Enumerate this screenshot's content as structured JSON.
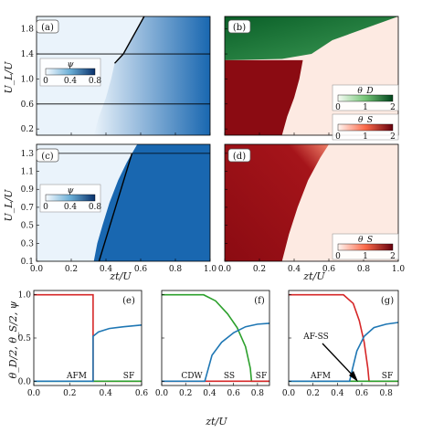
{
  "chart_data": [
    {
      "type": "heatmap",
      "panel": "(a)",
      "colormap": "Blues",
      "colorbar_label": "ψ",
      "colorbar_ticks": [
        "0",
        "0.4",
        "0.8"
      ],
      "xlim": [
        0,
        1.0
      ],
      "ylim": [
        0.1,
        2.0
      ],
      "yticks": [
        "0.2",
        "0.6",
        "1.0",
        "1.4",
        "1.8"
      ],
      "ylabel": "U_L/U",
      "xticks": [],
      "xlabel": "",
      "boundary": [
        {
          "x": 0.33,
          "y": 0.1
        },
        {
          "x": 0.36,
          "y": 0.4
        },
        {
          "x": 0.4,
          "y": 0.7
        },
        {
          "x": 0.43,
          "y": 1.0
        },
        {
          "x": 0.45,
          "y": 1.25
        },
        {
          "x": 0.5,
          "y": 1.4
        },
        {
          "x": 0.62,
          "y": 2.0
        }
      ],
      "hlines": [
        0.6,
        1.4
      ]
    },
    {
      "type": "heatmap",
      "panel": "(b)",
      "colormap": "Greens / Reds",
      "legend": [
        {
          "label": "θ_D",
          "ticks": [
            "0",
            "1",
            "2"
          ]
        },
        {
          "label": "θ_S",
          "ticks": [
            "0",
            "1",
            "2"
          ]
        }
      ],
      "xlim": [
        0,
        1.0
      ],
      "ylim": [
        0.1,
        2.0
      ],
      "green_region_boundary": [
        {
          "x": 0.0,
          "y": 1.3
        },
        {
          "x": 0.33,
          "y": 1.32
        },
        {
          "x": 0.5,
          "y": 1.4
        },
        {
          "x": 0.62,
          "y": 1.62
        },
        {
          "x": 1.0,
          "y": 2.0
        }
      ],
      "red_region_boundary": [
        {
          "x": 0.33,
          "y": 0.1
        },
        {
          "x": 0.36,
          "y": 0.4
        },
        {
          "x": 0.4,
          "y": 0.7
        },
        {
          "x": 0.43,
          "y": 1.0
        },
        {
          "x": 0.45,
          "y": 1.3
        }
      ]
    },
    {
      "type": "heatmap",
      "panel": "(c)",
      "colormap": "Blues",
      "colorbar_label": "ψ",
      "colorbar_ticks": [
        "0",
        "0.4",
        "0.8"
      ],
      "xlim": [
        0,
        1.0
      ],
      "ylim": [
        0.1,
        1.4
      ],
      "yticks": [
        "0.1",
        "0.3",
        "0.5",
        "0.7",
        "0.9",
        "1.1",
        "1.3"
      ],
      "ylabel": "U_L/U",
      "xticks": [
        "0.0",
        "0.2",
        "0.4",
        "0.6",
        "0.8",
        "1.0"
      ],
      "xlabel": "zt/U",
      "boundary": [
        {
          "x": 0.33,
          "y": 0.1
        },
        {
          "x": 0.35,
          "y": 0.3
        },
        {
          "x": 0.38,
          "y": 0.5
        },
        {
          "x": 0.42,
          "y": 0.75
        },
        {
          "x": 0.47,
          "y": 1.0
        },
        {
          "x": 0.52,
          "y": 1.2
        },
        {
          "x": 0.55,
          "y": 1.3
        }
      ],
      "fit_line": [
        {
          "x": 0.36,
          "y": 0.1
        },
        {
          "x": 0.55,
          "y": 1.3
        }
      ],
      "hlines": [
        1.3
      ]
    },
    {
      "type": "heatmap",
      "panel": "(d)",
      "colormap": "Reds",
      "legend": [
        {
          "label": "θ_S",
          "ticks": [
            "0",
            "1",
            "2"
          ]
        }
      ],
      "xlim": [
        0,
        1.0
      ],
      "ylim": [
        0.1,
        1.4
      ],
      "xticks": [
        "0.0",
        "0.2",
        "0.4",
        "0.6",
        "0.8",
        "1.0"
      ],
      "xlabel": "zt/U",
      "red_region_boundary": [
        {
          "x": 0.33,
          "y": 0.1
        },
        {
          "x": 0.37,
          "y": 0.4
        },
        {
          "x": 0.42,
          "y": 0.7
        },
        {
          "x": 0.48,
          "y": 1.0
        },
        {
          "x": 0.55,
          "y": 1.25
        },
        {
          "x": 0.6,
          "y": 1.4
        }
      ]
    },
    {
      "type": "line",
      "panel": "(e)",
      "xlim": [
        0,
        0.6
      ],
      "ylim": [
        -0.05,
        1.05
      ],
      "xticks": [
        "0.0",
        "0.2",
        "0.4",
        "0.6"
      ],
      "yticks": [
        "0.0",
        "0.5",
        "1.0"
      ],
      "ylabel": "θ_D/2, θ_S/2, ψ",
      "xlabel": "zt/U",
      "annotations": [
        "AFM",
        "SF"
      ],
      "series": [
        {
          "color": "#d62728",
          "x": [
            0,
            0.33,
            0.33,
            0.6
          ],
          "y": [
            1.0,
            1.0,
            0.0,
            0.0
          ]
        },
        {
          "color": "#2ca02c",
          "x": [
            0,
            0.6
          ],
          "y": [
            0.0,
            0.0
          ]
        },
        {
          "color": "#1f77b4",
          "x": [
            0,
            0.33,
            0.33,
            0.36,
            0.42,
            0.5,
            0.6
          ],
          "y": [
            0,
            0,
            0.52,
            0.57,
            0.61,
            0.63,
            0.65
          ]
        }
      ]
    },
    {
      "type": "line",
      "panel": "(f)",
      "xlim": [
        0,
        0.9
      ],
      "ylim": [
        -0.05,
        1.05
      ],
      "xticks": [
        "0.0",
        "0.2",
        "0.4",
        "0.6",
        "0.8"
      ],
      "xlabel": "zt/U",
      "annotations": [
        "CDW",
        "SS",
        "SF"
      ],
      "series": [
        {
          "color": "#2ca02c",
          "x": [
            0,
            0.35,
            0.45,
            0.55,
            0.63,
            0.7,
            0.74,
            0.75,
            0.9
          ],
          "y": [
            1.0,
            1.0,
            0.93,
            0.78,
            0.62,
            0.4,
            0.15,
            0.0,
            0.0
          ]
        },
        {
          "color": "#d62728",
          "x": [
            0,
            0.9
          ],
          "y": [
            0.0,
            0.0
          ]
        },
        {
          "color": "#1f77b4",
          "x": [
            0,
            0.36,
            0.37,
            0.42,
            0.5,
            0.6,
            0.7,
            0.8,
            0.9
          ],
          "y": [
            0,
            0,
            0.05,
            0.3,
            0.45,
            0.56,
            0.63,
            0.66,
            0.67
          ]
        }
      ]
    },
    {
      "type": "line",
      "panel": "(g)",
      "xlim": [
        0,
        0.9
      ],
      "ylim": [
        -0.05,
        1.05
      ],
      "xticks": [
        "0.0",
        "0.2",
        "0.4",
        "0.6",
        "0.8"
      ],
      "xlabel": "zt/U",
      "annotations": [
        "AFM",
        "SF",
        "AF-SS"
      ],
      "series": [
        {
          "color": "#d62728",
          "x": [
            0,
            0.45,
            0.53,
            0.58,
            0.62,
            0.65,
            0.66,
            0.9
          ],
          "y": [
            1.0,
            1.0,
            0.9,
            0.7,
            0.45,
            0.15,
            0.0,
            0.0
          ]
        },
        {
          "color": "#2ca02c",
          "x": [
            0,
            0.9
          ],
          "y": [
            0.0,
            0.0
          ]
        },
        {
          "color": "#1f77b4",
          "x": [
            0,
            0.5,
            0.52,
            0.56,
            0.62,
            0.7,
            0.8,
            0.9
          ],
          "y": [
            0,
            0,
            0.12,
            0.35,
            0.52,
            0.62,
            0.66,
            0.68
          ]
        }
      ]
    }
  ],
  "labels": {
    "panel_a": "(a)",
    "panel_b": "(b)",
    "panel_c": "(c)",
    "panel_d": "(d)",
    "panel_e": "(e)",
    "panel_f": "(f)",
    "panel_g": "(g)",
    "ylabel_top": "U_L/U",
    "ylabel_bottom": "θ_D/2, θ_S/2, ψ",
    "xlabel": "zt/U",
    "psi": "ψ",
    "theta_d": "θ_D",
    "theta_s": "θ_S",
    "ann_afm_e": "AFM",
    "ann_sf_e": "SF",
    "ann_cdw": "CDW",
    "ann_ss": "SS",
    "ann_sf_f": "SF",
    "ann_afss": "AF-SS",
    "ann_afm_g": "AFM",
    "ann_sf_g": "SF"
  },
  "colors": {
    "blue_dark": "#08529c",
    "blue_light": "#eaf3fb",
    "green_dark": "#0b6b2e",
    "red_dark": "#8b0b12",
    "red_light": "#fdeae2",
    "line_red": "#d62728",
    "line_green": "#2ca02c",
    "line_blue": "#1f77b4"
  }
}
